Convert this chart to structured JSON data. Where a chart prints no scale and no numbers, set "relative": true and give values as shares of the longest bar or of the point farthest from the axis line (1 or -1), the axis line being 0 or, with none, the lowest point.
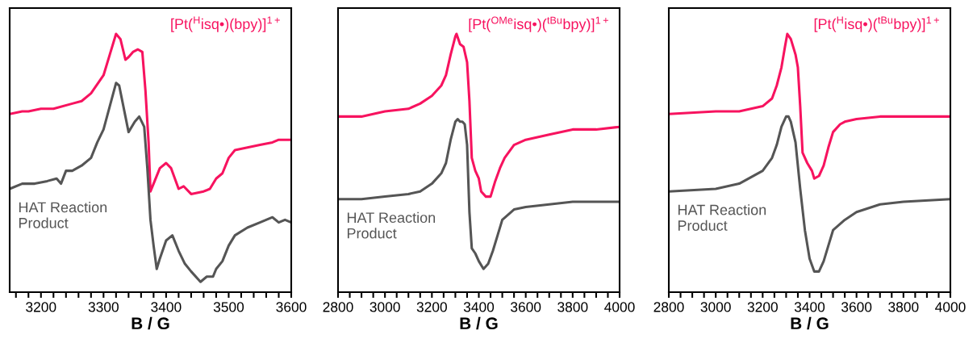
{
  "chart_data": [
    {
      "type": "line",
      "relative": true,
      "xlabel": "B / G",
      "xlim": [
        3150,
        3600
      ],
      "grid": false,
      "legend": false,
      "xticks": [
        {
          "value": 3160,
          "label": null
        },
        {
          "value": 3180,
          "label": null
        },
        3200,
        {
          "value": 3220,
          "label": null
        },
        {
          "value": 3240,
          "label": null
        },
        {
          "value": 3260,
          "label": null
        },
        {
          "value": 3280,
          "label": null
        },
        3300,
        {
          "value": 3320,
          "label": null
        },
        {
          "value": 3340,
          "label": null
        },
        {
          "value": 3360,
          "label": null
        },
        {
          "value": 3380,
          "label": null
        },
        3400,
        {
          "value": 3420,
          "label": null
        },
        {
          "value": 3440,
          "label": null
        },
        {
          "value": 3460,
          "label": null
        },
        {
          "value": 3480,
          "label": null
        },
        3500,
        {
          "value": 3520,
          "label": null
        },
        {
          "value": 3540,
          "label": null
        },
        {
          "value": 3560,
          "label": null
        },
        {
          "value": 3580,
          "label": null
        },
        3600
      ],
      "series": [
        {
          "name": "[Pt($^{H}$isq•)(bpy)]$^{1+}$",
          "color": "#f7135f",
          "x": [
            3150,
            3170,
            3180,
            3200,
            3220,
            3250,
            3265,
            3280,
            3300,
            3310,
            3320,
            3327,
            3335,
            3340,
            3347,
            3355,
            3362,
            3367,
            3372,
            3375,
            3380,
            3390,
            3400,
            3408,
            3420,
            3428,
            3440,
            3460,
            3470,
            3480,
            3490,
            3500,
            3510,
            3530,
            3550,
            3570,
            3580,
            3600
          ],
          "values": [
            0.69,
            0.7,
            0.7,
            0.71,
            0.71,
            0.73,
            0.74,
            0.77,
            0.84,
            0.92,
            1.0,
            0.98,
            0.9,
            0.91,
            0.93,
            0.94,
            0.93,
            0.78,
            0.58,
            0.39,
            0.42,
            0.48,
            0.5,
            0.48,
            0.4,
            0.41,
            0.38,
            0.39,
            0.4,
            0.44,
            0.46,
            0.52,
            0.55,
            0.56,
            0.57,
            0.58,
            0.59,
            0.59
          ]
        },
        {
          "name": "HAT Reaction Product",
          "color": "#555555",
          "x": [
            3150,
            3170,
            3190,
            3210,
            3225,
            3232,
            3240,
            3250,
            3265,
            3280,
            3290,
            3300,
            3310,
            3320,
            3325,
            3335,
            3340,
            3350,
            3357,
            3365,
            3370,
            3375,
            3380,
            3385,
            3390,
            3400,
            3410,
            3420,
            3430,
            3440,
            3455,
            3465,
            3475,
            3480,
            3490,
            3500,
            3510,
            3530,
            3550,
            3570,
            3580,
            3590,
            3600
          ],
          "values": [
            0.4,
            0.42,
            0.42,
            0.43,
            0.44,
            0.42,
            0.47,
            0.47,
            0.49,
            0.52,
            0.58,
            0.63,
            0.72,
            0.81,
            0.8,
            0.68,
            0.62,
            0.66,
            0.68,
            0.64,
            0.48,
            0.28,
            0.18,
            0.09,
            0.13,
            0.2,
            0.22,
            0.16,
            0.11,
            0.08,
            0.04,
            0.06,
            0.06,
            0.09,
            0.12,
            0.18,
            0.22,
            0.25,
            0.27,
            0.29,
            0.27,
            0.28,
            0.27
          ]
        }
      ]
    },
    {
      "type": "line",
      "relative": true,
      "xlabel": "B / G",
      "xlim": [
        2800,
        4000
      ],
      "grid": false,
      "legend": false,
      "xticks": [
        2800,
        {
          "value": 2850,
          "label": null
        },
        {
          "value": 2900,
          "label": null
        },
        {
          "value": 2950,
          "label": null
        },
        3000,
        {
          "value": 3050,
          "label": null
        },
        {
          "value": 3100,
          "label": null
        },
        {
          "value": 3150,
          "label": null
        },
        3200,
        {
          "value": 3250,
          "label": null
        },
        {
          "value": 3300,
          "label": null
        },
        {
          "value": 3350,
          "label": null
        },
        3400,
        {
          "value": 3450,
          "label": null
        },
        {
          "value": 3500,
          "label": null
        },
        {
          "value": 3550,
          "label": null
        },
        3600,
        {
          "value": 3650,
          "label": null
        },
        {
          "value": 3700,
          "label": null
        },
        {
          "value": 3750,
          "label": null
        },
        3800,
        {
          "value": 3850,
          "label": null
        },
        {
          "value": 3900,
          "label": null
        },
        {
          "value": 3950,
          "label": null
        },
        4000
      ],
      "series": [
        {
          "name": "[Pt($^{OMe}$isq•)($^{tBu}$bpy)]$^{1+}$",
          "color": "#f7135f",
          "x": [
            2800,
            2900,
            3000,
            3100,
            3150,
            3200,
            3240,
            3260,
            3280,
            3300,
            3305,
            3320,
            3335,
            3350,
            3360,
            3370,
            3385,
            3400,
            3410,
            3430,
            3450,
            3470,
            3490,
            3510,
            3550,
            3600,
            3700,
            3800,
            3900,
            4000
          ],
          "values": [
            0.68,
            0.68,
            0.7,
            0.71,
            0.73,
            0.76,
            0.8,
            0.84,
            0.92,
            0.99,
            1.0,
            0.96,
            0.95,
            0.89,
            0.74,
            0.52,
            0.47,
            0.44,
            0.39,
            0.37,
            0.37,
            0.43,
            0.48,
            0.52,
            0.57,
            0.59,
            0.61,
            0.63,
            0.63,
            0.64
          ]
        },
        {
          "name": "HAT Reaction Product",
          "color": "#555555",
          "x": [
            2800,
            2900,
            3000,
            3100,
            3150,
            3200,
            3240,
            3260,
            3280,
            3300,
            3310,
            3320,
            3330,
            3340,
            3350,
            3360,
            3370,
            3385,
            3400,
            3420,
            3440,
            3460,
            3480,
            3500,
            3550,
            3600,
            3700,
            3800,
            3900,
            4000
          ],
          "values": [
            0.36,
            0.36,
            0.37,
            0.38,
            0.39,
            0.42,
            0.46,
            0.5,
            0.59,
            0.66,
            0.67,
            0.66,
            0.66,
            0.65,
            0.57,
            0.31,
            0.17,
            0.15,
            0.12,
            0.09,
            0.11,
            0.16,
            0.22,
            0.28,
            0.32,
            0.33,
            0.34,
            0.35,
            0.35,
            0.35
          ]
        }
      ]
    },
    {
      "type": "line",
      "relative": true,
      "xlabel": "B / G",
      "xlim": [
        2800,
        4000
      ],
      "grid": false,
      "legend": false,
      "xticks": [
        2800,
        {
          "value": 2850,
          "label": null
        },
        {
          "value": 2900,
          "label": null
        },
        {
          "value": 2950,
          "label": null
        },
        3000,
        {
          "value": 3050,
          "label": null
        },
        {
          "value": 3100,
          "label": null
        },
        {
          "value": 3150,
          "label": null
        },
        3200,
        {
          "value": 3250,
          "label": null
        },
        {
          "value": 3300,
          "label": null
        },
        {
          "value": 3350,
          "label": null
        },
        3400,
        {
          "value": 3450,
          "label": null
        },
        {
          "value": 3500,
          "label": null
        },
        {
          "value": 3550,
          "label": null
        },
        3600,
        {
          "value": 3650,
          "label": null
        },
        {
          "value": 3700,
          "label": null
        },
        {
          "value": 3750,
          "label": null
        },
        3800,
        {
          "value": 3850,
          "label": null
        },
        {
          "value": 3900,
          "label": null
        },
        {
          "value": 3950,
          "label": null
        },
        4000
      ],
      "series": [
        {
          "name": "[Pt($^{H}$isq•)($^{tBu}$bpy)]$^{1+}$",
          "color": "#f7135f",
          "x": [
            2800,
            3000,
            3100,
            3200,
            3240,
            3260,
            3280,
            3295,
            3305,
            3320,
            3340,
            3350,
            3360,
            3370,
            3390,
            3410,
            3420,
            3440,
            3460,
            3480,
            3500,
            3530,
            3550,
            3600,
            3700,
            3800,
            4000
          ],
          "values": [
            0.69,
            0.7,
            0.7,
            0.72,
            0.75,
            0.8,
            0.87,
            0.95,
            1.0,
            0.98,
            0.92,
            0.87,
            0.72,
            0.54,
            0.5,
            0.47,
            0.44,
            0.45,
            0.49,
            0.56,
            0.62,
            0.65,
            0.66,
            0.67,
            0.68,
            0.68,
            0.68
          ]
        },
        {
          "name": "HAT Reaction Product",
          "color": "#555555",
          "x": [
            2800,
            3000,
            3100,
            3200,
            3240,
            3260,
            3280,
            3300,
            3310,
            3320,
            3340,
            3360,
            3380,
            3400,
            3420,
            3440,
            3460,
            3480,
            3500,
            3550,
            3600,
            3700,
            3800,
            4000
          ],
          "values": [
            0.39,
            0.4,
            0.42,
            0.47,
            0.52,
            0.57,
            0.64,
            0.68,
            0.68,
            0.66,
            0.58,
            0.4,
            0.24,
            0.13,
            0.08,
            0.08,
            0.12,
            0.18,
            0.24,
            0.28,
            0.31,
            0.34,
            0.35,
            0.36
          ]
        }
      ]
    }
  ]
}
